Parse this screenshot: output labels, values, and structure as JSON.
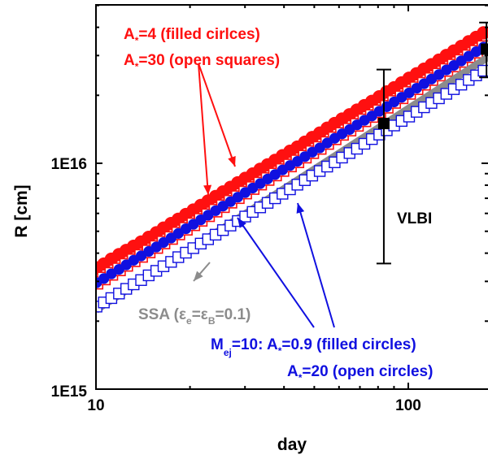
{
  "chart_data": {
    "type": "scatter",
    "title": "",
    "xlabel": "day",
    "ylabel": "R [cm]",
    "x_scale": "log",
    "y_scale": "log",
    "xlim": [
      10,
      180
    ],
    "ylim": [
      1000000000000000.0,
      4.6e+16
    ],
    "x_ticks": [
      {
        "value": 10,
        "label": "10"
      },
      {
        "value": 100,
        "label": "100"
      }
    ],
    "y_ticks": [
      {
        "value": 1000000000000000.0,
        "label": "1E15"
      },
      {
        "value": 1e+16,
        "label": "1E16"
      }
    ],
    "series": [
      {
        "key": "ast4",
        "marker": "filled-circle",
        "color": "#ff1010",
        "x": [
          10.04,
          10.6,
          11.2,
          11.85,
          12.5,
          13.2,
          13.95,
          14.75,
          15.6,
          16.45,
          17.4,
          18.35,
          19.4,
          20.5,
          21.65,
          22.85,
          24.15,
          25.5,
          26.95,
          28.45,
          30.05,
          31.75,
          33.55,
          35.45,
          37.45,
          39.55,
          41.8,
          44.15,
          46.65,
          49.25,
          52.05,
          55.0,
          58.1,
          61.35,
          64.85,
          68.5,
          72.35,
          76.45,
          80.75,
          85.3,
          90.1,
          95.2,
          100.6,
          106.3,
          112.3,
          118.6,
          125.3,
          132.4,
          139.9,
          147.8,
          156.1,
          164.9,
          174.2
        ],
        "y": [
          3440000000000000.0,
          3580000000000000.0,
          3760000000000000.0,
          3940000000000000.0,
          4110000000000000.0,
          4290000000000000.0,
          4480000000000000.0,
          4700000000000000.0,
          4920000000000000.0,
          5160000000000000.0,
          5410000000000000.0,
          5650000000000000.0,
          5930000000000000.0,
          6210000000000000.0,
          6500000000000000.0,
          6800000000000000.0,
          7120000000000000.0,
          7460000000000000.0,
          7820000000000000.0,
          8190000000000000.0,
          8570000000000000.0,
          8960000000000000.0,
          9400000000000000.0,
          9840000000000000.0,
          1.03e+16,
          1.08e+16,
          1.13e+16,
          1.18e+16,
          1.24e+16,
          1.3e+16,
          1.36e+16,
          1.43e+16,
          1.5e+16,
          1.57e+16,
          1.64e+16,
          1.72e+16,
          1.8e+16,
          1.88e+16,
          1.97e+16,
          2.07e+16,
          2.16e+16,
          2.27e+16,
          2.38e+16,
          2.49e+16,
          2.61e+16,
          2.73e+16,
          2.86e+16,
          3e+16,
          3.14e+16,
          3.29e+16,
          3.45e+16,
          3.61e+16,
          3.78e+16
        ]
      },
      {
        "key": "ast30",
        "marker": "open-square",
        "color": "#ff1010",
        "x": [
          10.04,
          10.6,
          11.2,
          11.85,
          12.5,
          13.2,
          13.95,
          14.75,
          15.6,
          16.45,
          17.4,
          18.35,
          19.4,
          20.5,
          21.65,
          22.85,
          24.15,
          25.5,
          26.95,
          28.45,
          30.05,
          31.75,
          33.55,
          35.45,
          37.45,
          39.55,
          41.8,
          44.15,
          46.65,
          49.25,
          52.05,
          55.0,
          58.1,
          61.35,
          64.85,
          68.5,
          72.35,
          76.45,
          80.75,
          85.3,
          90.1,
          95.2,
          100.6,
          106.3,
          112.3,
          118.6,
          125.3,
          132.4,
          139.9,
          147.8,
          156.1,
          164.9,
          174.2
        ],
        "y": [
          2960000000000000.0,
          3090000000000000.0,
          3240000000000000.0,
          3390000000000000.0,
          3550000000000000.0,
          3720000000000000.0,
          3890000000000000.0,
          4070000000000000.0,
          4260000000000000.0,
          4460000000000000.0,
          4670000000000000.0,
          4890000000000000.0,
          5130000000000000.0,
          5370000000000000.0,
          5620000000000000.0,
          5890000000000000.0,
          6170000000000000.0,
          6460000000000000.0,
          6760000000000000.0,
          7080000000000000.0,
          7420000000000000.0,
          7770000000000000.0,
          8130000000000000.0,
          8520000000000000.0,
          8920000000000000.0,
          9340000000000000.0,
          9780000000000000.0,
          1.02e+16,
          1.07e+16,
          1.12e+16,
          1.17e+16,
          1.23e+16,
          1.29e+16,
          1.35e+16,
          1.41e+16,
          1.48e+16,
          1.55e+16,
          1.62e+16,
          1.7e+16,
          1.78e+16,
          1.87e+16,
          1.96e+16,
          2.05e+16,
          2.15e+16,
          2.25e+16,
          2.36e+16,
          2.47e+16,
          2.59e+16,
          2.71e+16,
          2.84e+16,
          2.98e+16,
          3.12e+16,
          3.27e+16
        ]
      },
      {
        "key": "mej_filled",
        "marker": "filled-circle",
        "color": "#1010e0",
        "x": [
          10.04,
          10.6,
          11.2,
          11.85,
          12.5,
          13.2,
          13.95,
          14.75,
          15.6,
          16.45,
          17.4,
          18.35,
          19.4,
          20.5,
          21.65,
          22.85,
          24.15,
          25.5,
          26.95,
          28.45,
          30.05,
          31.75,
          33.55,
          35.45,
          37.45,
          39.55,
          41.8,
          44.15,
          46.65,
          49.25,
          52.05,
          55.0,
          58.1,
          61.35,
          64.85,
          68.5,
          72.35,
          76.45,
          80.75,
          85.3,
          90.1,
          95.2,
          100.6,
          106.3,
          112.3,
          118.6,
          125.3,
          132.4,
          139.9,
          147.8,
          156.1,
          164.9,
          174.2
        ],
        "y": [
          2960000000000000.0,
          3090000000000000.0,
          3240000000000000.0,
          3390000000000000.0,
          3550000000000000.0,
          3720000000000000.0,
          3890000000000000.0,
          4070000000000000.0,
          4260000000000000.0,
          4460000000000000.0,
          4670000000000000.0,
          4890000000000000.0,
          5130000000000000.0,
          5370000000000000.0,
          5620000000000000.0,
          5890000000000000.0,
          6170000000000000.0,
          6460000000000000.0,
          6760000000000000.0,
          7080000000000000.0,
          7420000000000000.0,
          7770000000000000.0,
          8130000000000000.0,
          8520000000000000.0,
          8920000000000000.0,
          9340000000000000.0,
          9780000000000000.0,
          1.02e+16,
          1.07e+16,
          1.12e+16,
          1.17e+16,
          1.23e+16,
          1.29e+16,
          1.35e+16,
          1.41e+16,
          1.48e+16,
          1.55e+16,
          1.62e+16,
          1.7e+16,
          1.78e+16,
          1.87e+16,
          1.96e+16,
          2.05e+16,
          2.15e+16,
          2.25e+16,
          2.36e+16,
          2.47e+16,
          2.59e+16,
          2.71e+16,
          2.84e+16,
          2.98e+16,
          3.12e+16,
          3.27e+16
        ]
      },
      {
        "key": "mej_open",
        "marker": "open-square",
        "color": "#1010e0",
        "x": [
          10.04,
          10.6,
          11.2,
          11.85,
          12.5,
          13.2,
          13.95,
          14.75,
          15.6,
          16.45,
          17.4,
          18.35,
          19.4,
          20.5,
          21.65,
          22.85,
          24.15,
          25.5,
          26.95,
          28.45,
          30.05,
          31.75,
          33.55,
          35.45,
          37.45,
          39.55,
          41.8,
          44.15,
          46.65,
          49.25,
          52.05,
          55.0,
          58.1,
          61.35,
          64.85,
          68.5,
          72.35,
          76.45,
          80.75,
          85.3,
          90.1,
          95.2,
          100.6,
          106.3,
          112.3,
          118.6,
          125.3,
          132.4,
          139.9,
          147.8,
          156.1,
          164.9,
          174.2
        ],
        "y": [
          2320000000000000.0,
          2420000000000000.0,
          2530000000000000.0,
          2650000000000000.0,
          2780000000000000.0,
          2910000000000000.0,
          3040000000000000.0,
          3190000000000000.0,
          3340000000000000.0,
          3500000000000000.0,
          3660000000000000.0,
          3840000000000000.0,
          4020000000000000.0,
          4210000000000000.0,
          4410000000000000.0,
          4610000000000000.0,
          4830000000000000.0,
          5060000000000000.0,
          5300000000000000.0,
          5550000000000000.0,
          5810000000000000.0,
          6090000000000000.0,
          6380000000000000.0,
          6680000000000000.0,
          7000000000000000.0,
          7330000000000000.0,
          7670000000000000.0,
          8040000000000000.0,
          8420000000000000.0,
          8820000000000000.0,
          9240000000000000.0,
          9670000000000000.0,
          1.01e+16,
          1.06e+16,
          1.11e+16,
          1.16e+16,
          1.22e+16,
          1.28e+16,
          1.34e+16,
          1.4e+16,
          1.47e+16,
          1.54e+16,
          1.61e+16,
          1.69e+16,
          1.77e+16,
          1.85e+16,
          1.94e+16,
          2.03e+16,
          2.13e+16,
          2.23e+16,
          2.34e+16,
          2.45e+16,
          2.57e+16
        ]
      }
    ],
    "line": {
      "key": "ssa",
      "color": "#8c8c8c",
      "x": [
        10,
        180
      ],
      "y": [
        2240000000000000.0,
        2.95e+16
      ]
    },
    "vlbi": [
      {
        "x": 83.5,
        "y": 1.5e+16,
        "y_low": 3600000000000000.0,
        "y_high": 2.6e+16
      },
      {
        "x": 178,
        "y": 3.2e+16,
        "y_low": 2.4e+16,
        "y_high": 4.2e+16
      }
    ],
    "annotations": {
      "a4_line1": "A",
      "a4_sub": "*",
      "a4_line2": "=4  (filled cirlces)",
      "a30_line1": "A",
      "a30_sub": "*",
      "a30_line2": "=30 (open squares)",
      "ssa_pre": "SSA (",
      "ssa_eps1": "ε",
      "ssa_sub1": "e",
      "ssa_eq": "=",
      "ssa_eps2": "ε",
      "ssa_sub2": "B",
      "ssa_post": "=0.1)",
      "mej_m": "M",
      "mej_sub": "ej",
      "mej_mid": "=10: A",
      "mej_star": "*",
      "mej_end": "=0.9 (filled circles)",
      "a20_a": "A",
      "a20_star": "*",
      "a20_end": "=20  (open circles)",
      "vlbi_label": "VLBI"
    },
    "colors": {
      "red": "#ff1010",
      "blue": "#1010e0",
      "gray": "#8c8c8c",
      "black": "#000000"
    },
    "grid": false,
    "legend": "none"
  }
}
